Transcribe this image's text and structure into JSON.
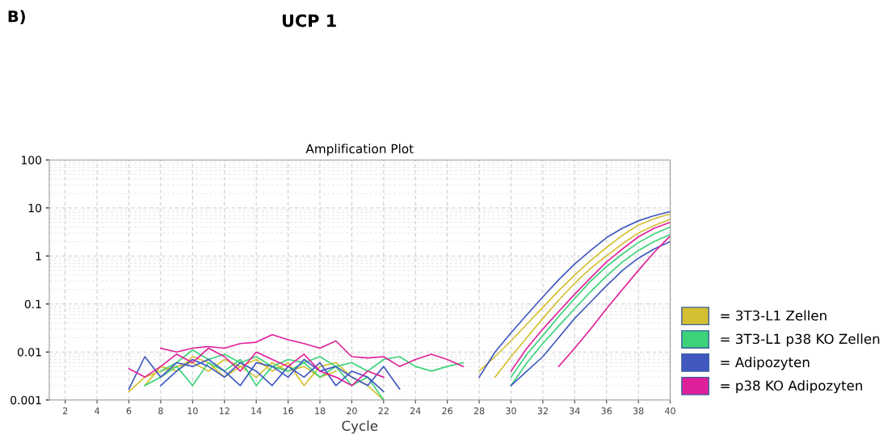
{
  "chart_data": {
    "type": "line",
    "title": "UCP 1",
    "subtitle": "Amplification Plot",
    "xlabel": "Cycle",
    "annotations": [
      "B)"
    ],
    "log": "y",
    "xlim": [
      1,
      40
    ],
    "xticks": [
      2,
      4,
      6,
      8,
      10,
      12,
      14,
      16,
      18,
      20,
      22,
      24,
      26,
      28,
      30,
      32,
      34,
      36,
      38,
      40
    ],
    "ylim": [
      0.001,
      100
    ],
    "yticks": [
      0.001,
      0.01,
      0.1,
      1,
      10,
      100
    ],
    "grid": true,
    "legend": "right",
    "x": [
      6,
      7,
      8,
      9,
      10,
      11,
      12,
      13,
      14,
      15,
      16,
      17,
      18,
      19,
      20,
      21,
      22,
      23,
      24,
      25,
      26,
      27,
      28,
      29,
      30,
      31,
      32,
      33,
      34,
      35,
      36,
      37,
      38,
      39,
      40
    ],
    "series": [
      {
        "name": "= 3T3-L1 Zellen",
        "color": "#d4c030",
        "values": [
          0.0015,
          0.003,
          0.004,
          0.005,
          0.006,
          0.004,
          0.007,
          0.005,
          0.003,
          0.006,
          0.004,
          0.005,
          0.003,
          0.004,
          null,
          null,
          null,
          null,
          null,
          null,
          null,
          null,
          0.004,
          0.008,
          0.017,
          0.038,
          0.085,
          0.19,
          0.4,
          0.8,
          1.5,
          2.7,
          4.4,
          6.0,
          7.5
        ]
      },
      {
        "color": "#d4c030",
        "values": [
          null,
          0.002,
          0.005,
          0.004,
          0.008,
          0.006,
          0.003,
          0.005,
          0.007,
          0.004,
          0.006,
          0.002,
          0.005,
          0.006,
          0.003,
          0.002,
          0.001,
          null,
          null,
          null,
          null,
          null,
          null,
          0.003,
          0.008,
          0.02,
          0.05,
          0.12,
          0.27,
          0.55,
          1.0,
          1.8,
          3.0,
          4.3,
          5.8
        ]
      },
      {
        "name": "= 3T3-L1 p38 KO Zellen",
        "color": "#3cd27a",
        "values": [
          null,
          null,
          0.004,
          0.006,
          0.011,
          0.007,
          0.009,
          0.006,
          0.008,
          0.005,
          0.007,
          0.006,
          0.008,
          0.005,
          0.006,
          0.004,
          0.007,
          0.008,
          0.005,
          0.004,
          0.005,
          0.006,
          null,
          null,
          0.002,
          0.006,
          0.015,
          0.035,
          0.08,
          0.18,
          0.38,
          0.75,
          1.3,
          2.0,
          2.8
        ]
      },
      {
        "color": "#3cd27a",
        "values": [
          null,
          0.002,
          0.003,
          0.005,
          0.002,
          0.006,
          0.004,
          0.007,
          0.002,
          0.005,
          0.004,
          0.006,
          0.003,
          0.005,
          0.002,
          0.003,
          0.001,
          null,
          null,
          null,
          null,
          null,
          null,
          null,
          0.003,
          0.009,
          0.022,
          0.055,
          0.13,
          0.3,
          0.6,
          1.1,
          1.9,
          2.9,
          4.0
        ]
      },
      {
        "name": "= Adipozyten",
        "color": "#4058c0",
        "values": [
          0.0017,
          0.008,
          0.003,
          0.006,
          0.005,
          0.007,
          0.004,
          0.002,
          0.006,
          0.005,
          0.003,
          0.007,
          0.004,
          0.005,
          0.003,
          0.002,
          0.005,
          0.0017,
          null,
          null,
          null,
          null,
          0.003,
          0.01,
          0.025,
          0.06,
          0.14,
          0.32,
          0.68,
          1.3,
          2.4,
          3.8,
          5.4,
          6.9,
          8.4
        ]
      },
      {
        "color": "#4058c0",
        "values": [
          null,
          null,
          0.002,
          0.004,
          0.007,
          0.005,
          0.003,
          0.006,
          0.004,
          0.002,
          0.005,
          0.003,
          0.006,
          0.002,
          0.004,
          0.003,
          0.0015,
          null,
          null,
          null,
          null,
          null,
          null,
          null,
          0.002,
          0.004,
          0.008,
          0.02,
          0.05,
          0.11,
          0.24,
          0.5,
          0.9,
          1.4,
          2.0
        ]
      },
      {
        "name": "= p38 KO Adipozyten",
        "color": "#e0209a",
        "values": [
          null,
          null,
          0.012,
          0.01,
          0.012,
          0.013,
          0.012,
          0.015,
          0.016,
          0.023,
          0.018,
          0.015,
          0.012,
          0.017,
          0.008,
          0.0075,
          0.008,
          0.005,
          0.007,
          0.009,
          0.007,
          0.005,
          null,
          null,
          null,
          null,
          null,
          0.005,
          0.012,
          0.03,
          0.08,
          0.2,
          0.5,
          1.2,
          2.6
        ]
      },
      {
        "color": "#e0209a",
        "values": [
          0.0045,
          0.003,
          0.005,
          0.009,
          0.006,
          0.012,
          0.008,
          0.004,
          0.01,
          0.007,
          0.005,
          0.009,
          0.004,
          0.003,
          0.002,
          0.004,
          0.003,
          null,
          null,
          null,
          null,
          null,
          null,
          null,
          0.004,
          0.012,
          0.03,
          0.07,
          0.16,
          0.35,
          0.75,
          1.4,
          2.5,
          3.8,
          5.0
        ]
      }
    ]
  }
}
